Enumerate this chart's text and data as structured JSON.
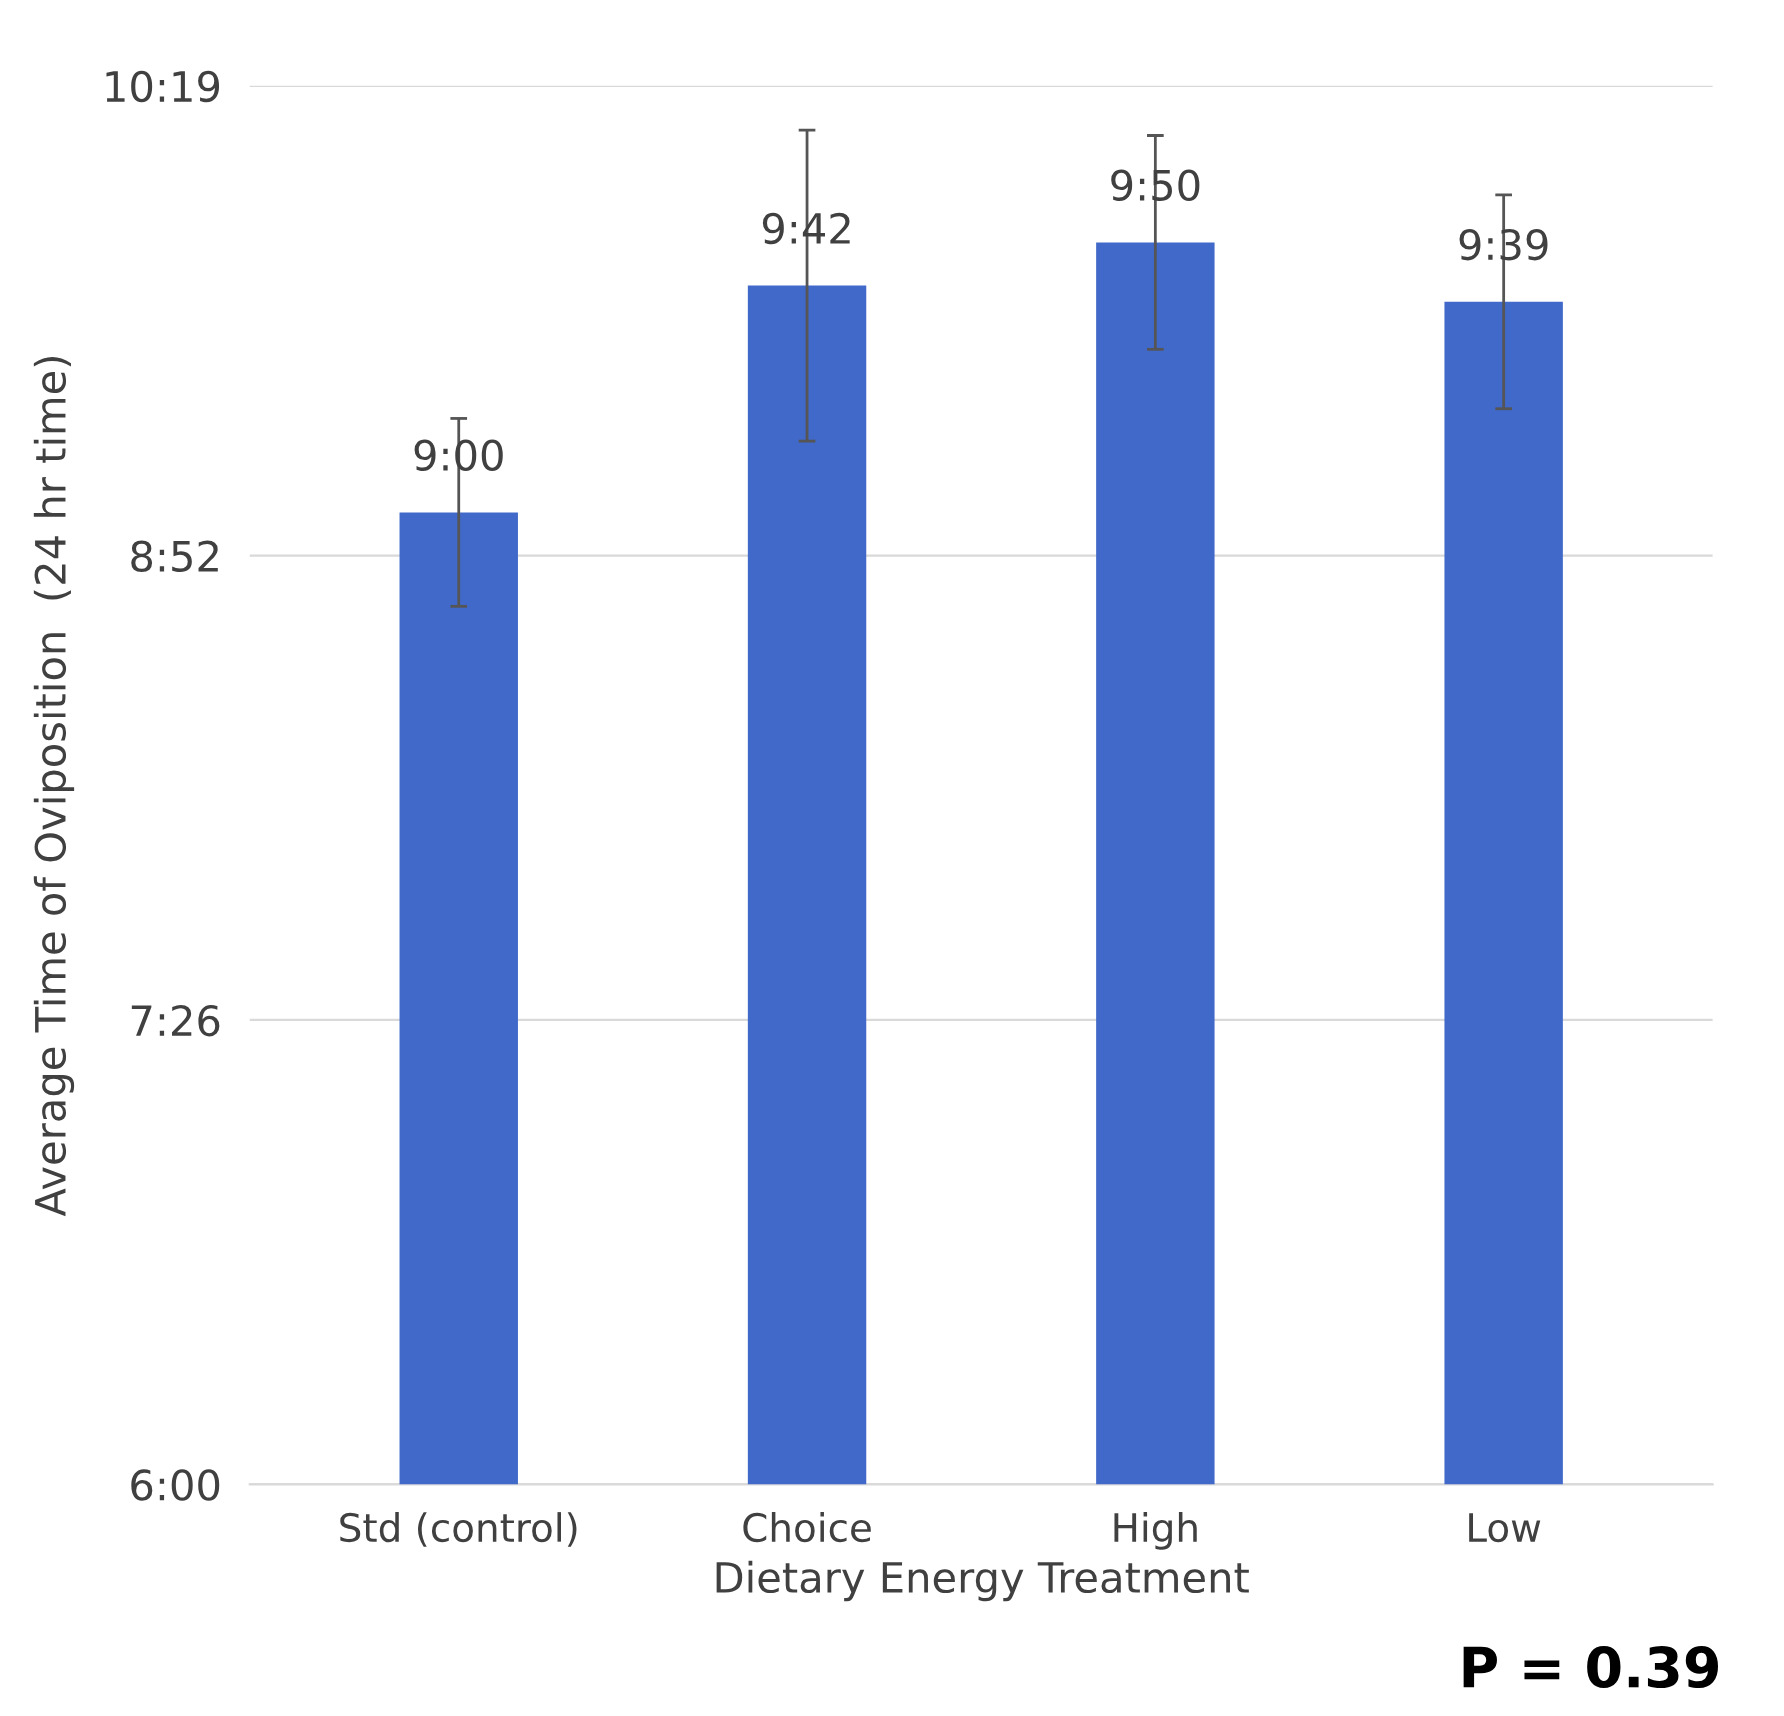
{
  "chart_data": {
    "type": "bar",
    "xlabel": "Dietary Energy Treatment",
    "ylabel": "Average Time of Oviposition  (24 hr time)",
    "categories": [
      "Std (control)",
      "Choice",
      "High",
      "Low"
    ],
    "values": [
      9.0,
      9.7,
      9.8333,
      9.65
    ],
    "errors": [
      0.29,
      0.48,
      0.33,
      0.33
    ],
    "value_labels": [
      "9:00",
      "9:42",
      "9:50",
      "9:39"
    ],
    "color": "#4169c9",
    "ylim": [
      6.0,
      10.3167
    ],
    "yticks": [
      {
        "value": 6.0,
        "label": "6:00"
      },
      {
        "value": 7.4333,
        "label": "7:26"
      },
      {
        "value": 8.8667,
        "label": "8:52"
      },
      {
        "value": 10.3167,
        "label": "10:19"
      }
    ],
    "grid": "y",
    "annotations": [
      "P = 0.39"
    ]
  }
}
